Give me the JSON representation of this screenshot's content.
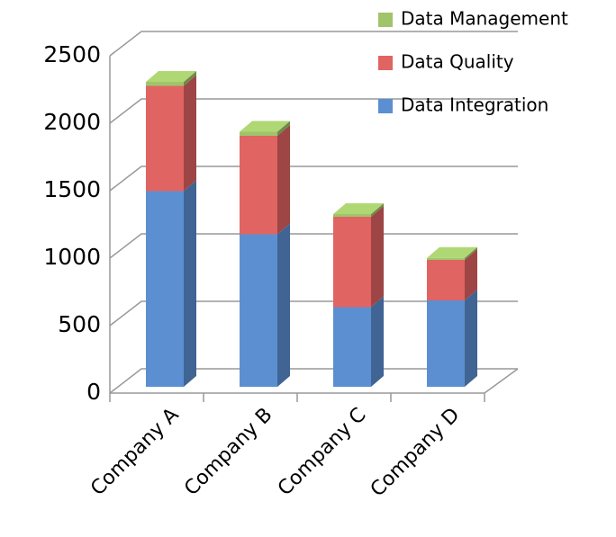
{
  "chart_data": {
    "type": "bar3d_stacked",
    "categories": [
      "Company A",
      "Company B",
      "Company C",
      "Company D"
    ],
    "series": [
      {
        "name": "Data Integration",
        "color": "#5b8fd2",
        "values": [
          1450,
          1130,
          590,
          640
        ]
      },
      {
        "name": "Data Quality",
        "color": "#e06462",
        "values": [
          780,
          730,
          670,
          300
        ]
      },
      {
        "name": "Data Management",
        "color": "#9fc46a",
        "values": [
          30,
          30,
          20,
          15
        ]
      }
    ],
    "ylim": [
      0,
      2500
    ],
    "yticks": [
      0,
      500,
      1000,
      1500,
      2000,
      2500
    ],
    "grid": true,
    "legend": "top-right"
  }
}
